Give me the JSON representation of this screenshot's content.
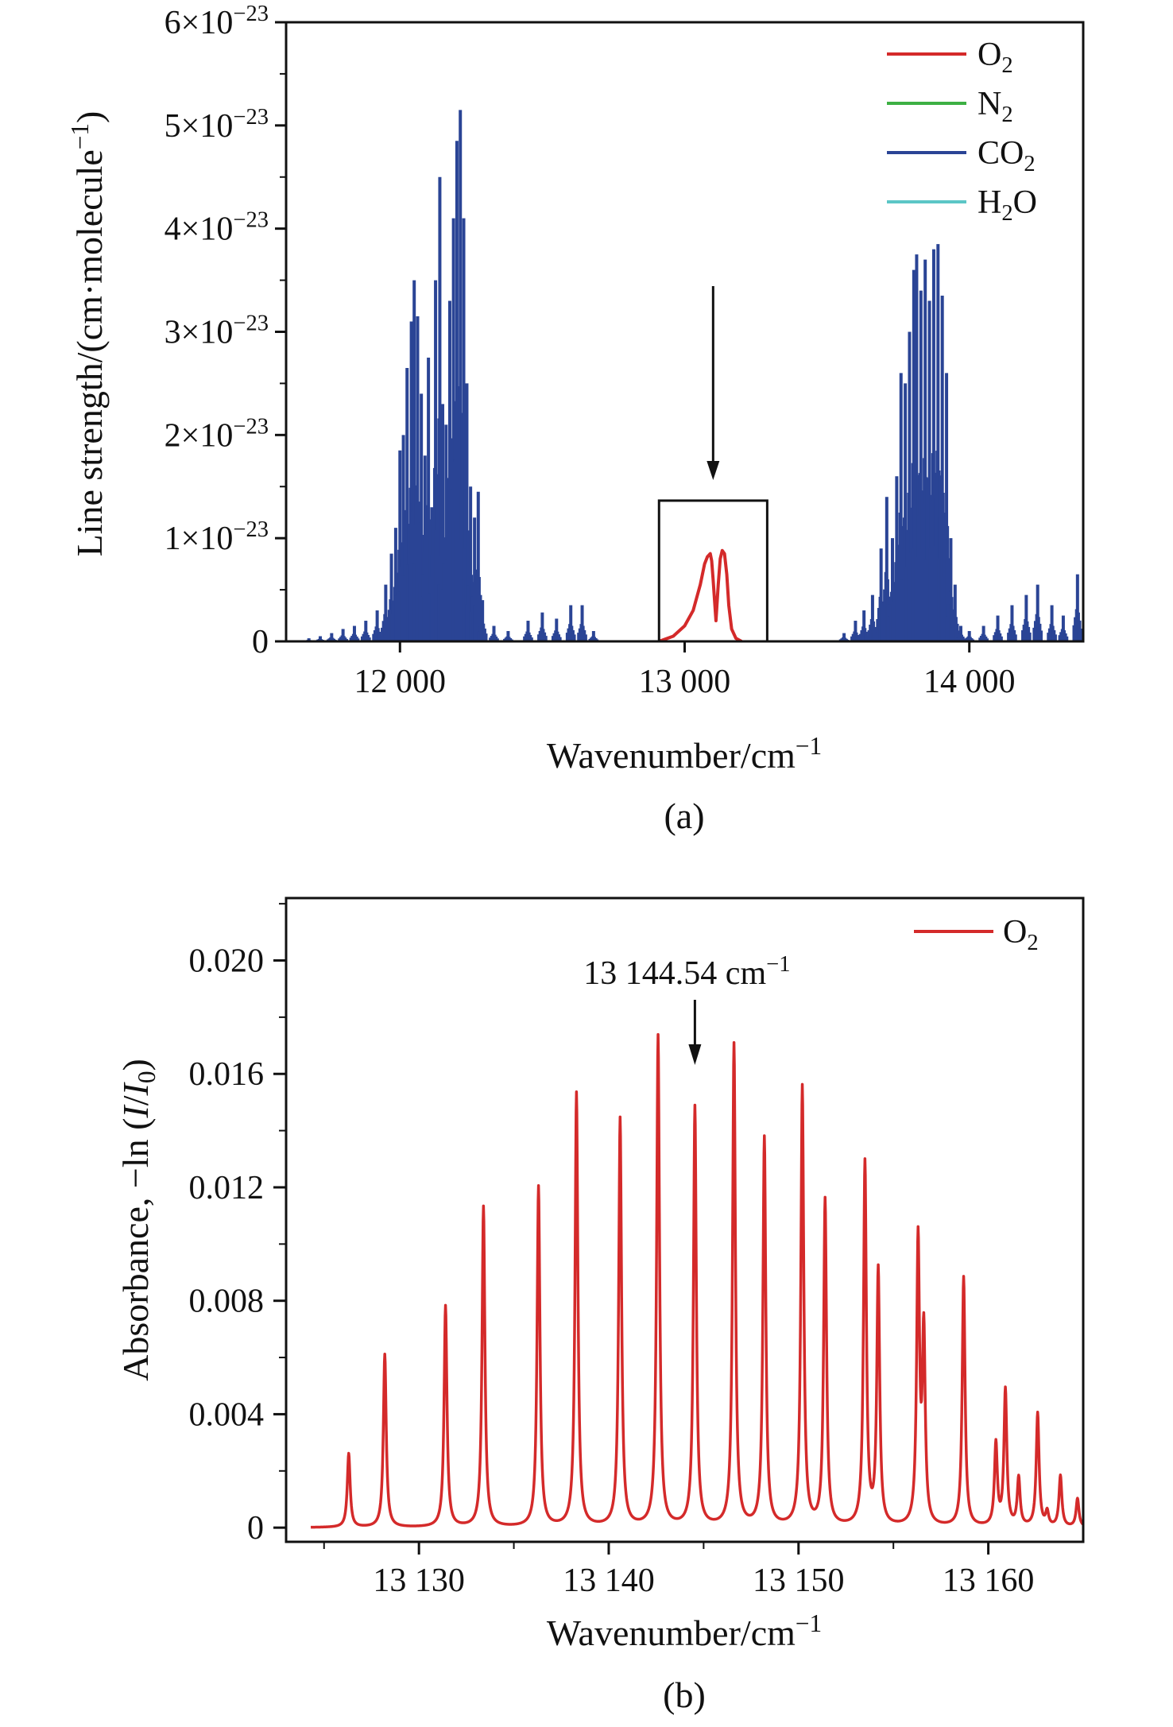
{
  "chart_data": [
    {
      "type": "line",
      "panel_label": "(a)",
      "xlabel": "Wavenumber/cm⁻¹",
      "ylabel": "Line strength/(cm·molecule⁻¹)",
      "xlim": [
        11600,
        14400
      ],
      "ylim": [
        0,
        6e-23
      ],
      "x_ticks": [
        12000,
        13000,
        14000
      ],
      "x_tick_labels": [
        "12 000",
        "13 000",
        "14 000"
      ],
      "y_ticks": [
        0,
        1e-23,
        2e-23,
        3e-23,
        4e-23,
        5e-23,
        6e-23
      ],
      "y_tick_labels": [
        "0",
        "1×10⁻²³",
        "2×10⁻²³",
        "3×10⁻²³",
        "4×10⁻²³",
        "5×10⁻²³",
        "6×10⁻²³"
      ],
      "legend_position": "top-right",
      "series": [
        {
          "name": "O₂",
          "color": "#d42a2a",
          "style": "line",
          "x": [
            12910,
            12960,
            13000,
            13030,
            13055,
            13070,
            13080,
            13090,
            13095,
            13100,
            13110,
            13118,
            13125,
            13132,
            13140,
            13148,
            13155,
            13165,
            13180,
            13200
          ],
          "y": [
            0,
            5e-25,
            1.5e-24,
            3e-24,
            5.5e-24,
            7.5e-24,
            8.2e-24,
            8.5e-24,
            7.8e-24,
            6e-24,
            2e-24,
            5.5e-24,
            8e-24,
            8.8e-24,
            8.5e-24,
            6.5e-24,
            3.5e-24,
            1.2e-24,
            3e-25,
            0
          ]
        },
        {
          "name": "N₂",
          "color": "#3cb043",
          "style": "line",
          "x": [
            11600,
            14400
          ],
          "y": [
            0,
            0
          ]
        },
        {
          "name": "CO₂",
          "color": "#2a4495",
          "style": "sticks",
          "x": [
            11680,
            11720,
            11760,
            11800,
            11840,
            11880,
            11920,
            11950,
            11970,
            11985,
            12000,
            12012,
            12025,
            12040,
            12050,
            12062,
            12075,
            12088,
            12100,
            12112,
            12125,
            12140,
            12150,
            12162,
            12175,
            12188,
            12200,
            12212,
            12224,
            12235,
            12248,
            12262,
            12275,
            12290,
            12330,
            12380,
            12450,
            12500,
            12550,
            12600,
            12640,
            12680,
            13560,
            13600,
            13630,
            13660,
            13690,
            13710,
            13730,
            13745,
            13760,
            13775,
            13790,
            13805,
            13815,
            13830,
            13845,
            13860,
            13875,
            13890,
            13905,
            13920,
            13935,
            13950,
            13970,
            14000,
            14050,
            14100,
            14150,
            14200,
            14240,
            14290,
            14330,
            14380
          ],
          "y": [
            3e-25,
            5e-25,
            8e-25,
            1.2e-24,
            1.5e-24,
            2e-24,
            3e-24,
            5.5e-24,
            8.5e-24,
            1.1e-23,
            1.85e-23,
            2e-23,
            2.65e-23,
            3.1e-23,
            3.5e-23,
            3.15e-23,
            2.4e-23,
            1.8e-23,
            2.75e-23,
            1.3e-23,
            3.5e-23,
            4.5e-23,
            2.3e-23,
            2.1e-23,
            3.3e-23,
            4.1e-23,
            4.85e-23,
            5.15e-23,
            4.1e-23,
            2.5e-23,
            1.5e-23,
            1.2e-23,
            1.45e-23,
            4e-24,
            1.5e-24,
            1e-24,
            2e-24,
            2.8e-24,
            2.2e-24,
            3.5e-24,
            3.5e-24,
            1e-24,
            8e-25,
            2e-24,
            3e-24,
            4.5e-24,
            9e-24,
            1.4e-23,
            1e-23,
            1.6e-23,
            2.6e-23,
            2.5e-23,
            3e-23,
            3.6e-23,
            3.75e-23,
            3.4e-23,
            3.7e-23,
            3.3e-23,
            3.8e-23,
            3.85e-23,
            3.35e-23,
            2.6e-23,
            1e-23,
            5.5e-24,
            1.5e-24,
            1e-24,
            1.5e-24,
            2.5e-24,
            3.5e-24,
            4.5e-24,
            5.5e-24,
            3.5e-24,
            2.5e-24,
            6.5e-24
          ]
        },
        {
          "name": "H₂O",
          "color": "#5cc6c6",
          "style": "line",
          "x": [
            11600,
            14400
          ],
          "y": [
            0,
            0
          ]
        }
      ]
    },
    {
      "type": "line",
      "panel_label": "(b)",
      "xlabel": "Wavenumber/cm⁻¹",
      "ylabel": "Absorbance, −ln (I/I₀)",
      "xlim": [
        13123,
        13165
      ],
      "ylim": [
        -0.0005,
        0.0222
      ],
      "x_ticks": [
        13130,
        13140,
        13150,
        13160
      ],
      "x_tick_labels": [
        "13 130",
        "13 140",
        "13 150",
        "13 160"
      ],
      "x_minor_ticks": [
        13125,
        13135,
        13145,
        13155
      ],
      "y_ticks": [
        0,
        0.004,
        0.008,
        0.012,
        0.016,
        0.02
      ],
      "y_tick_labels": [
        "0",
        "0.004",
        "0.008",
        "0.012",
        "0.016",
        "0.020"
      ],
      "legend_position": "top-right",
      "annotation": {
        "text": "13 144.54 cm⁻¹",
        "x": 13144.54,
        "y": 0.0148
      },
      "series": [
        {
          "name": "O₂",
          "color": "#d42a2a",
          "style": "lorentz",
          "width": 0.09,
          "peaks_x": [
            13126.3,
            13128.2,
            13131.4,
            13133.4,
            13136.3,
            13138.3,
            13140.6,
            13142.6,
            13144.54,
            13146.6,
            13148.2,
            13150.2,
            13151.4,
            13153.5,
            13154.2,
            13156.3,
            13156.6,
            13158.7,
            13160.4,
            13160.9,
            13161.6,
            13162.6,
            13163.1,
            13163.8,
            13164.7
          ],
          "peaks_y": [
            0.0026,
            0.0061,
            0.0078,
            0.0113,
            0.012,
            0.0153,
            0.0144,
            0.0173,
            0.0148,
            0.017,
            0.0137,
            0.0155,
            0.0115,
            0.0128,
            0.009,
            0.01,
            0.0067,
            0.0088,
            0.0029,
            0.0048,
            0.0017,
            0.004,
            0.0005,
            0.0018,
            0.001
          ]
        }
      ]
    }
  ]
}
